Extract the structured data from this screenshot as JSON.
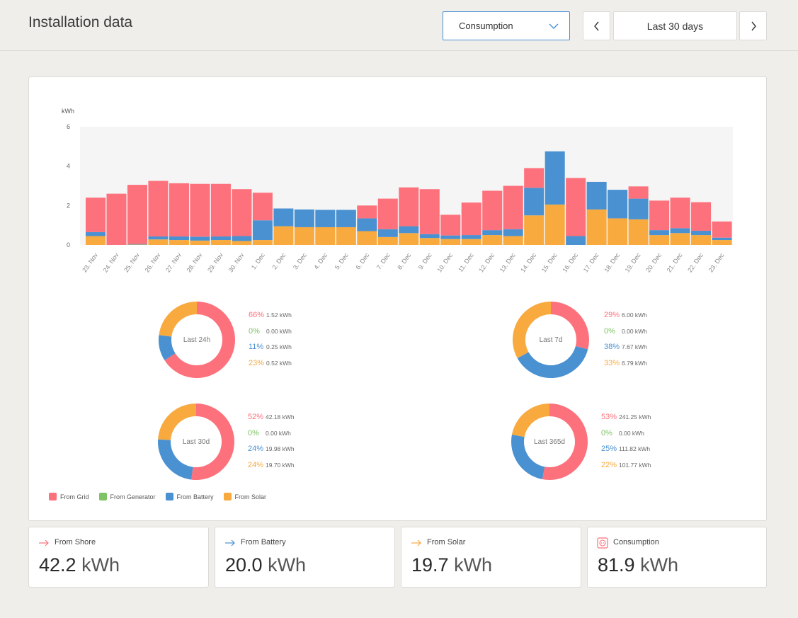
{
  "header": {
    "title": "Installation data",
    "select_label": "Consumption",
    "range_label": "Last 30 days"
  },
  "colors": {
    "grid": "#fd717c",
    "generator": "#7ec364",
    "battery": "#4a91d2",
    "solar": "#f8aa3f"
  },
  "chart_data": {
    "type": "bar",
    "stacked": true,
    "ylabel": "kWh",
    "ylim": [
      0,
      6
    ],
    "yticks": [
      0,
      2,
      4,
      6
    ],
    "categories": [
      "23. Nov",
      "24. Nov",
      "25. Nov",
      "26. Nov",
      "27. Nov",
      "28. Nov",
      "29. Nov",
      "30. Nov",
      "1. Dec",
      "2. Dec",
      "3. Dec",
      "4. Dec",
      "5. Dec",
      "6. Dec",
      "7. Dec",
      "8. Dec",
      "9. Dec",
      "10. Dec",
      "11. Dec",
      "12. Dec",
      "13. Dec",
      "14. Dec",
      "15. Dec",
      "16. Dec",
      "17. Dec",
      "18. Dec",
      "19. Dec",
      "20. Dec",
      "21. Dec",
      "22. Dec",
      "23. Dec"
    ],
    "series": [
      {
        "name": "From Solar",
        "color": "#f8aa3f",
        "values": [
          0.45,
          0,
          0.02,
          0.28,
          0.25,
          0.22,
          0.25,
          0.2,
          0.25,
          0.95,
          0.9,
          0.9,
          0.9,
          0.7,
          0.4,
          0.6,
          0.35,
          0.3,
          0.3,
          0.5,
          0.45,
          1.5,
          2.05,
          0,
          1.8,
          1.35,
          1.3,
          0.5,
          0.6,
          0.5,
          0.25
        ]
      },
      {
        "name": "From Battery",
        "color": "#4a91d2",
        "values": [
          0.2,
          0,
          0.03,
          0.15,
          0.18,
          0.2,
          0.18,
          0.25,
          1.0,
          0.9,
          0.9,
          0.88,
          0.88,
          0.65,
          0.4,
          0.35,
          0.2,
          0.18,
          0.2,
          0.25,
          0.35,
          1.4,
          2.7,
          0.45,
          1.4,
          1.45,
          1.05,
          0.25,
          0.25,
          0.22,
          0.12
        ]
      },
      {
        "name": "From Generator",
        "color": "#7ec364",
        "values": [
          0,
          0,
          0,
          0,
          0,
          0,
          0,
          0,
          0,
          0,
          0,
          0,
          0,
          0,
          0,
          0,
          0,
          0,
          0,
          0,
          0,
          0,
          0,
          0,
          0,
          0,
          0,
          0,
          0,
          0,
          0
        ]
      },
      {
        "name": "From Grid",
        "color": "#fd717c",
        "values": [
          1.75,
          2.6,
          3.0,
          2.82,
          2.7,
          2.68,
          2.67,
          2.38,
          1.4,
          0,
          0,
          0,
          0,
          0.65,
          1.55,
          1.97,
          2.28,
          1.05,
          1.65,
          2.0,
          2.2,
          1.0,
          0,
          2.95,
          0,
          0,
          0.62,
          1.5,
          1.55,
          1.45,
          0.82
        ]
      }
    ]
  },
  "donuts": [
    {
      "center": "Last 24h",
      "rows": [
        {
          "pct": "66%",
          "kwh": "1.52 kWh",
          "color": "#fd717c"
        },
        {
          "pct": "0%",
          "kwh": "0.00 kWh",
          "color": "#7ec364"
        },
        {
          "pct": "11%",
          "kwh": "0.25 kWh",
          "color": "#4a91d2"
        },
        {
          "pct": "23%",
          "kwh": "0.52 kWh",
          "color": "#f8aa3f"
        }
      ]
    },
    {
      "center": "Last 7d",
      "rows": [
        {
          "pct": "29%",
          "kwh": "6.00 kWh",
          "color": "#fd717c"
        },
        {
          "pct": "0%",
          "kwh": "0.00 kWh",
          "color": "#7ec364"
        },
        {
          "pct": "38%",
          "kwh": "7.67 kWh",
          "color": "#4a91d2"
        },
        {
          "pct": "33%",
          "kwh": "6.79 kWh",
          "color": "#f8aa3f"
        }
      ]
    },
    {
      "center": "Last 30d",
      "rows": [
        {
          "pct": "52%",
          "kwh": "42.18 kWh",
          "color": "#fd717c"
        },
        {
          "pct": "0%",
          "kwh": "0.00 kWh",
          "color": "#7ec364"
        },
        {
          "pct": "24%",
          "kwh": "19.98 kWh",
          "color": "#4a91d2"
        },
        {
          "pct": "24%",
          "kwh": "19.70 kWh",
          "color": "#f8aa3f"
        }
      ]
    },
    {
      "center": "Last 365d",
      "rows": [
        {
          "pct": "53%",
          "kwh": "241.25 kWh",
          "color": "#fd717c"
        },
        {
          "pct": "0%",
          "kwh": "0.00 kWh",
          "color": "#7ec364"
        },
        {
          "pct": "25%",
          "kwh": "111.82 kWh",
          "color": "#4a91d2"
        },
        {
          "pct": "22%",
          "kwh": "101.77 kWh",
          "color": "#f8aa3f"
        }
      ]
    }
  ],
  "legend": [
    {
      "label": "From Grid",
      "color": "#fd717c"
    },
    {
      "label": "From Generator",
      "color": "#7ec364"
    },
    {
      "label": "From Battery",
      "color": "#4a91d2"
    },
    {
      "label": "From Solar",
      "color": "#f8aa3f"
    }
  ],
  "stats": [
    {
      "label": "From Shore",
      "number": "42.2",
      "unit": "kWh",
      "icon": "arrow-right-icon",
      "color": "#fd717c"
    },
    {
      "label": "From Battery",
      "number": "20.0",
      "unit": "kWh",
      "icon": "arrow-right-icon",
      "color": "#4a91d2"
    },
    {
      "label": "From Solar",
      "number": "19.7",
      "unit": "kWh",
      "icon": "arrow-right-icon",
      "color": "#f8aa3f"
    },
    {
      "label": "Consumption",
      "number": "81.9",
      "unit": "kWh",
      "icon": "outlet-icon",
      "color": "#fd717c"
    }
  ]
}
